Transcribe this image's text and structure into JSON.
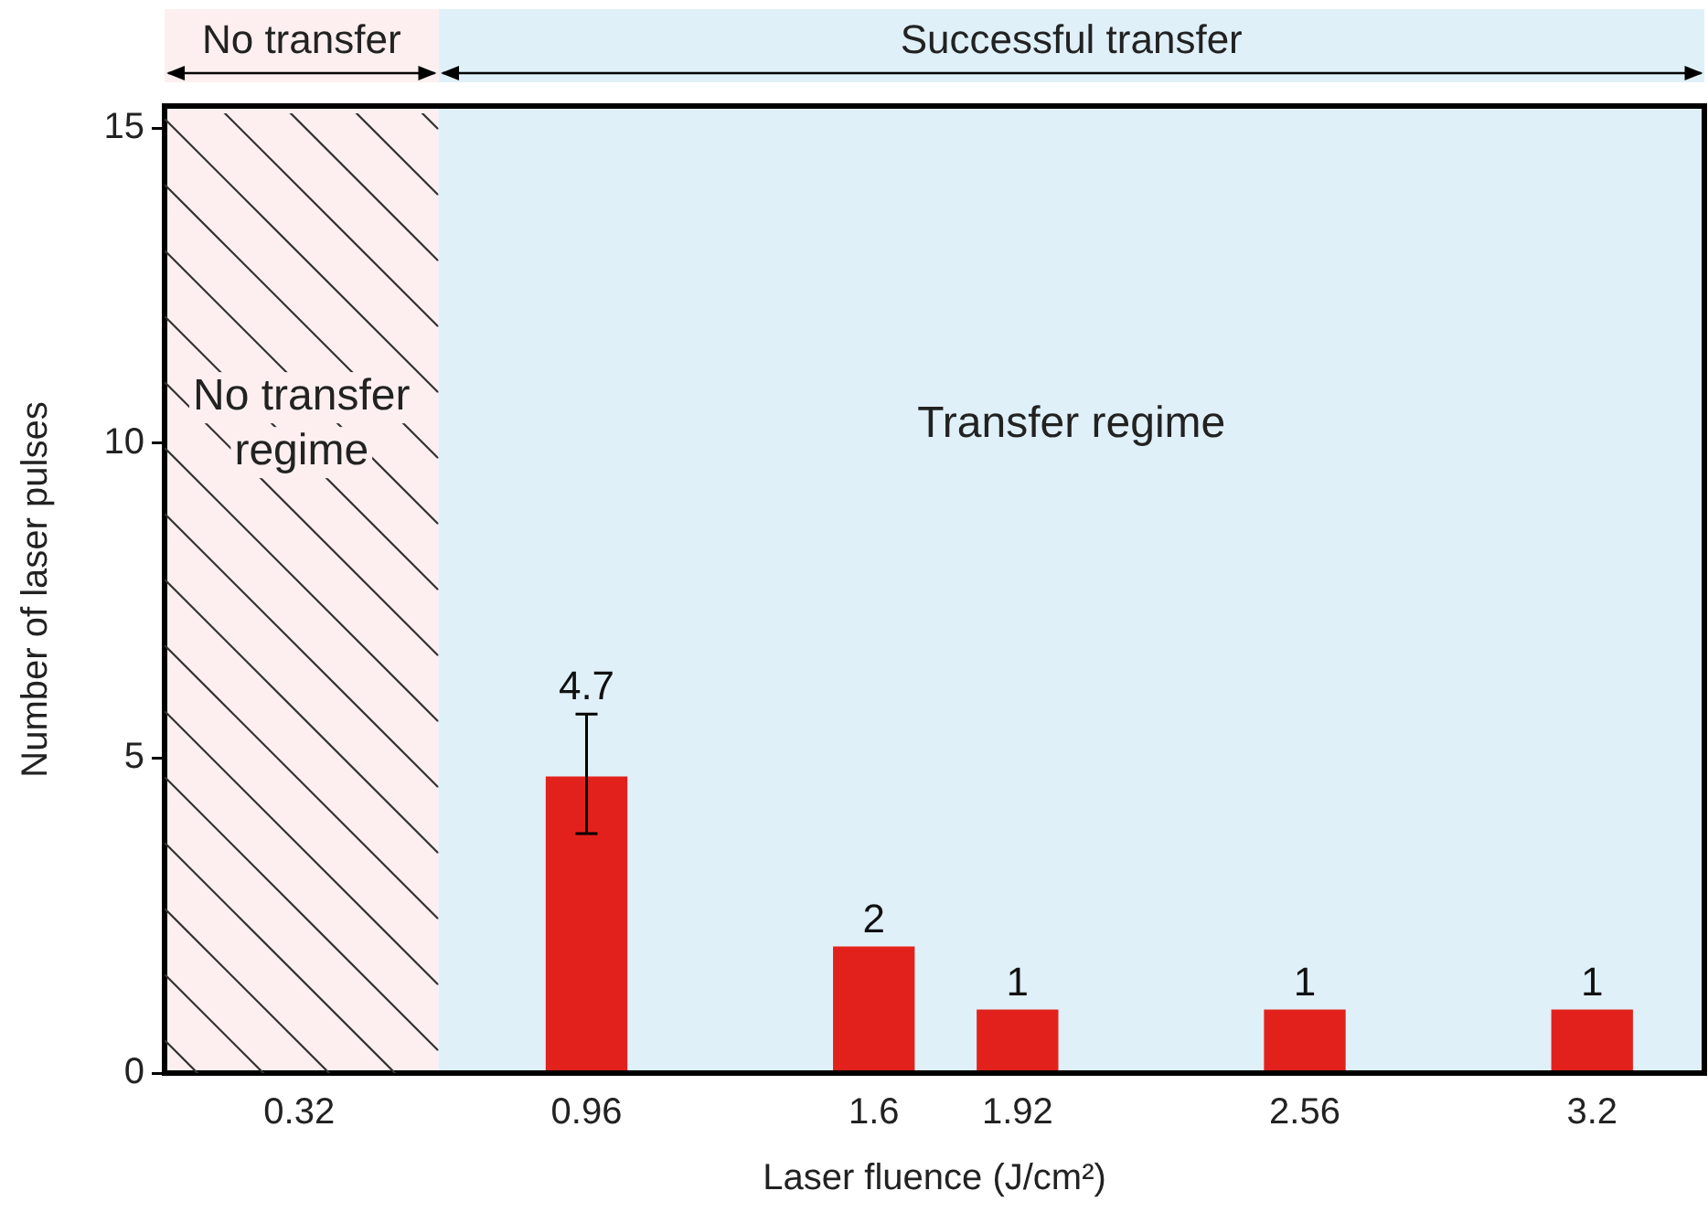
{
  "chart_data": {
    "type": "bar",
    "xlabel": "Laser fluence (J/cm²)",
    "ylabel": "Number of laser pulses",
    "x": [
      0.96,
      1.6,
      1.92,
      2.56,
      3.2
    ],
    "series": [
      {
        "color": "#e3211c",
        "values": [
          4.7,
          2,
          1,
          1,
          1
        ],
        "errors": [
          [
            3.8,
            5.7
          ],
          null,
          null,
          null,
          null
        ]
      }
    ],
    "xlim": [
      0.02,
      3.45
    ],
    "xticks": [
      0.32,
      0.96,
      1.6,
      1.92,
      2.56,
      3.2
    ],
    "ylim": [
      0,
      15.35
    ],
    "yticks": [
      0,
      5,
      10,
      15
    ],
    "bands": [
      {
        "axis": "x",
        "from": 0.02,
        "to": 0.63,
        "label": "No transfer regime",
        "color": "#fdeff0"
      },
      {
        "axis": "x",
        "from": 0.63,
        "to": 3.45,
        "label": "Transfer regime",
        "color": "#dff0f9"
      }
    ],
    "annotations": [
      "No transfer",
      "Successful transfer"
    ],
    "data_labels": true,
    "grid": false,
    "legend": false
  }
}
